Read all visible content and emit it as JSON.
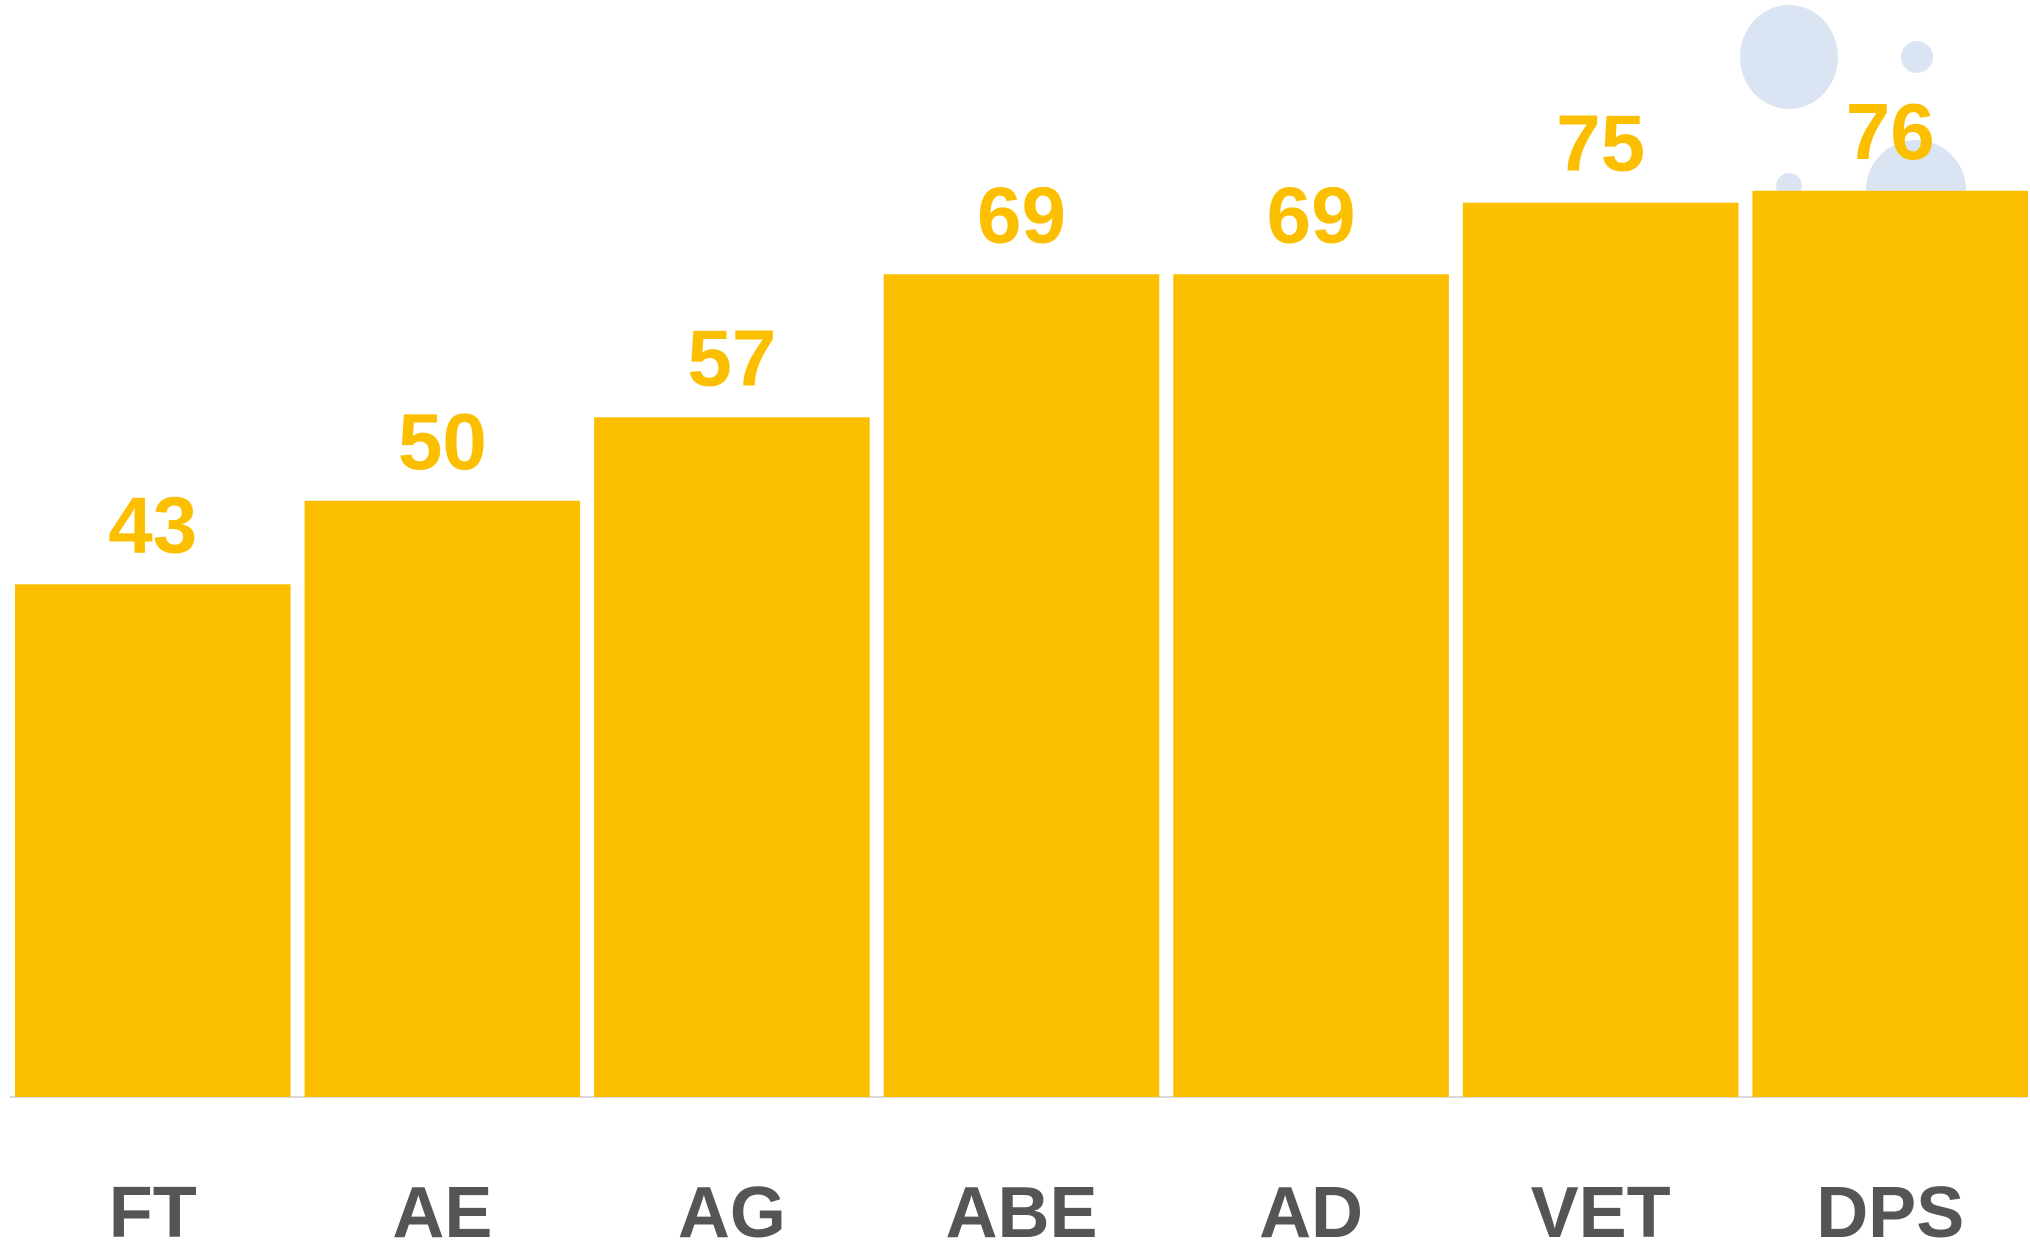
{
  "chart_data": {
    "type": "bar",
    "categories": [
      "FT",
      "AE",
      "AG",
      "ABE",
      "AD",
      "VET",
      "DPS"
    ],
    "values": [
      43,
      50,
      57,
      69,
      69,
      75,
      76
    ],
    "color": "#fcbf00",
    "ylim": [
      0,
      92
    ]
  }
}
